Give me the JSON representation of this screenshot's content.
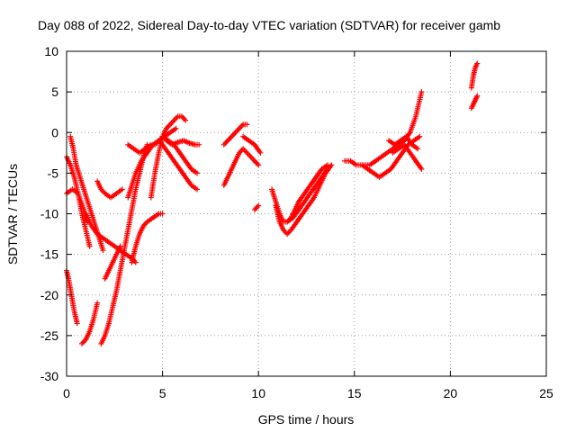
{
  "chart_data": {
    "type": "scatter",
    "title": "Day 088 of 2022, Sidereal Day-to-day VTEC variation (SDTVAR) for receiver gamb",
    "xlabel": "GPS time / hours",
    "ylabel": "SDTVAR / TECUs",
    "xlim": [
      0,
      25
    ],
    "ylim": [
      -30,
      10
    ],
    "xticks": [
      0,
      5,
      10,
      15,
      20,
      25
    ],
    "yticks": [
      -30,
      -25,
      -20,
      -15,
      -10,
      -5,
      0,
      5,
      10
    ],
    "xtick_labels": [
      "0",
      "5",
      "10",
      "15",
      "20",
      "25"
    ],
    "ytick_labels": [
      "-30",
      "-25",
      "-20",
      "-15",
      "-10",
      "-5",
      "0",
      "5",
      "10"
    ],
    "grid": true,
    "marker": "+",
    "color": "#ff0000",
    "series": [
      {
        "x": [
          0.0,
          0.2,
          0.4,
          0.6,
          0.8,
          1.0,
          1.2
        ],
        "y": [
          -3.0,
          -4.0,
          -5.5,
          -7.5,
          -10.0,
          -12.0,
          -14.0
        ]
      },
      {
        "x": [
          0.0,
          0.3,
          0.6,
          0.9,
          1.1
        ],
        "y": [
          -7.5,
          -7.0,
          -7.5,
          -9.5,
          -11.0
        ]
      },
      {
        "x": [
          0.2,
          0.35,
          0.5,
          0.7,
          0.9,
          1.1,
          1.3,
          1.5,
          1.7,
          1.9
        ],
        "y": [
          -0.5,
          -2.0,
          -4.0,
          -5.5,
          -7.0,
          -8.5,
          -10.0,
          -11.5,
          -13.0,
          -14.5
        ]
      },
      {
        "x": [
          0.0,
          0.1,
          0.25,
          0.4,
          0.55
        ],
        "y": [
          -17.0,
          -18.0,
          -20.0,
          -22.0,
          -23.5
        ]
      },
      {
        "x": [
          0.8,
          1.0,
          1.2,
          1.4,
          1.6
        ],
        "y": [
          -26.0,
          -25.5,
          -24.5,
          -23.0,
          -21.0
        ]
      },
      {
        "x": [
          1.8,
          2.0,
          2.2,
          2.4,
          2.6,
          2.8,
          3.0,
          3.2,
          3.4,
          3.6,
          3.8,
          4.0,
          4.2
        ],
        "y": [
          -26.0,
          -25.0,
          -23.5,
          -21.5,
          -19.5,
          -17.0,
          -14.5,
          -12.0,
          -9.5,
          -7.0,
          -5.0,
          -3.0,
          -1.5
        ]
      },
      {
        "x": [
          2.0,
          2.2,
          2.4,
          2.6,
          2.8
        ],
        "y": [
          -18.0,
          -17.0,
          -16.0,
          -15.0,
          -14.0
        ]
      },
      {
        "x": [
          1.0,
          1.3,
          1.6,
          1.9,
          2.2,
          2.5,
          2.8,
          3.1,
          3.4,
          3.6
        ],
        "y": [
          -10.0,
          -11.5,
          -12.5,
          -13.0,
          -13.5,
          -14.0,
          -14.5,
          -15.0,
          -15.5,
          -16.0
        ]
      },
      {
        "x": [
          1.6,
          1.8,
          2.0,
          2.3,
          2.6,
          2.9
        ],
        "y": [
          -6.0,
          -7.0,
          -7.5,
          -8.0,
          -7.5,
          -7.0
        ]
      },
      {
        "x": [
          3.4,
          3.6,
          3.8,
          4.0,
          4.2,
          4.5,
          4.8,
          5.0
        ],
        "y": [
          -16.0,
          -14.0,
          -12.5,
          -11.5,
          -11.0,
          -10.5,
          -10.0,
          -10.0
        ]
      },
      {
        "x": [
          3.2,
          3.4,
          3.6,
          3.9,
          4.2,
          4.5,
          4.8,
          5.1,
          5.4,
          5.7
        ],
        "y": [
          -8.0,
          -6.5,
          -5.0,
          -3.5,
          -2.5,
          -1.5,
          -1.0,
          -0.5,
          0.0,
          0.5
        ]
      },
      {
        "x": [
          4.4,
          4.6,
          4.8,
          5.0,
          5.2,
          5.4,
          5.6,
          5.8,
          6.0,
          6.2
        ],
        "y": [
          -8.0,
          -5.0,
          -2.5,
          -0.5,
          0.5,
          1.0,
          1.5,
          2.0,
          2.0,
          1.5
        ]
      },
      {
        "x": [
          4.6,
          4.8,
          5.0,
          5.3,
          5.6,
          5.9,
          6.2,
          6.5,
          6.8
        ],
        "y": [
          -1.5,
          -1.0,
          -1.5,
          -2.5,
          -3.5,
          -4.5,
          -5.5,
          -6.5,
          -7.0
        ]
      },
      {
        "x": [
          5.0,
          5.3,
          5.6,
          5.9,
          6.2,
          6.5,
          6.8
        ],
        "y": [
          -0.5,
          -1.0,
          -1.5,
          -2.5,
          -3.5,
          -4.5,
          -5.0
        ]
      },
      {
        "x": [
          5.2,
          5.5,
          5.8,
          6.1,
          6.4,
          6.7,
          6.9
        ],
        "y": [
          -1.0,
          -1.5,
          -1.2,
          -1.0,
          -1.3,
          -1.5,
          -1.5
        ]
      },
      {
        "x": [
          3.2,
          3.5,
          3.8,
          4.1,
          4.4
        ],
        "y": [
          -1.5,
          -2.0,
          -2.5,
          -2.0,
          -1.5
        ]
      },
      {
        "x": [
          8.2,
          8.4,
          8.6,
          8.8,
          9.0,
          9.2,
          9.4,
          9.6,
          9.8,
          10.0
        ],
        "y": [
          -6.5,
          -5.5,
          -4.5,
          -3.5,
          -2.5,
          -2.0,
          -2.5,
          -3.0,
          -3.5,
          -4.0
        ]
      },
      {
        "x": [
          8.2,
          8.4,
          8.6,
          8.8,
          9.0,
          9.2,
          9.4
        ],
        "y": [
          -1.5,
          -1.0,
          -0.5,
          0.0,
          0.5,
          1.0,
          1.0
        ]
      },
      {
        "x": [
          9.2,
          9.5,
          9.8,
          10.1
        ],
        "y": [
          -0.5,
          -1.0,
          -1.5,
          -2.5
        ]
      },
      {
        "x": [
          9.8,
          10.0
        ],
        "y": [
          -9.5,
          -9.0
        ]
      },
      {
        "x": [
          10.7,
          10.9,
          11.1,
          11.3,
          11.5,
          11.7,
          11.9,
          12.1,
          12.4,
          12.7,
          13.0,
          13.3,
          13.6
        ],
        "y": [
          -7.0,
          -8.5,
          -10.0,
          -11.0,
          -11.0,
          -10.5,
          -9.5,
          -8.5,
          -7.5,
          -6.5,
          -5.5,
          -4.5,
          -4.0
        ]
      },
      {
        "x": [
          10.9,
          11.1,
          11.3,
          11.5,
          11.7,
          12.0,
          12.3,
          12.6,
          12.9,
          13.2,
          13.5,
          13.8
        ],
        "y": [
          -9.0,
          -11.0,
          -12.0,
          -12.5,
          -12.0,
          -11.0,
          -10.0,
          -9.0,
          -8.0,
          -6.5,
          -5.0,
          -4.0
        ]
      },
      {
        "x": [
          11.5,
          11.8,
          12.1,
          12.4,
          12.7,
          13.0,
          13.3,
          13.6
        ],
        "y": [
          -11.0,
          -10.5,
          -9.5,
          -8.5,
          -7.5,
          -6.5,
          -5.5,
          -4.5
        ]
      },
      {
        "x": [
          14.5,
          14.8,
          15.1,
          15.4,
          15.7,
          16.0,
          16.3,
          16.6,
          16.9,
          17.2,
          17.5,
          17.8,
          18.1,
          18.4
        ],
        "y": [
          -3.5,
          -3.5,
          -4.0,
          -4.0,
          -4.5,
          -5.0,
          -5.5,
          -5.0,
          -4.5,
          -3.5,
          -2.5,
          -1.5,
          -1.0,
          -0.5
        ]
      },
      {
        "x": [
          15.5,
          15.8,
          16.1,
          16.4,
          16.7,
          17.0,
          17.3,
          17.6,
          17.9,
          18.2,
          18.5
        ],
        "y": [
          -4.0,
          -4.0,
          -3.5,
          -3.0,
          -2.5,
          -2.0,
          -1.5,
          -1.0,
          0.0,
          2.0,
          5.0
        ]
      },
      {
        "x": [
          17.0,
          17.3,
          17.6,
          17.9,
          18.2,
          18.5
        ],
        "y": [
          -2.5,
          -2.0,
          -1.5,
          -2.5,
          -3.5,
          -4.5
        ]
      },
      {
        "x": [
          16.8,
          17.1,
          17.4,
          17.7,
          18.0,
          18.3
        ],
        "y": [
          -1.0,
          -1.5,
          -1.0,
          -0.5,
          -1.5,
          -2.0
        ]
      },
      {
        "x": [
          21.1,
          21.2,
          21.3,
          21.4
        ],
        "y": [
          5.5,
          7.0,
          8.0,
          8.5
        ]
      },
      {
        "x": [
          21.1,
          21.2,
          21.3,
          21.4
        ],
        "y": [
          3.0,
          3.5,
          4.0,
          4.5
        ]
      }
    ]
  }
}
